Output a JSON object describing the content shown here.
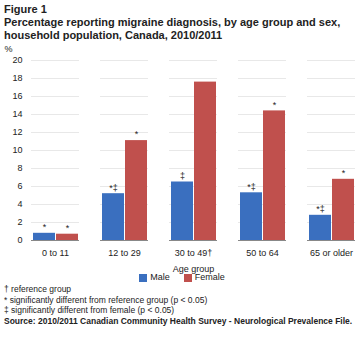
{
  "chart_data": {
    "type": "bar",
    "title": "Figure 1",
    "subtitle": "Percentage reporting migraine diagnosis, by age group and sex, household population, Canada, 2010/2011",
    "x_label": "Age group",
    "y_label": "%",
    "categories": [
      "0 to 11",
      "12 to 29",
      "30 to 49†",
      "50 to 64",
      "65 or older"
    ],
    "series": [
      {
        "name": "Male",
        "color": "#3a6fbf",
        "values": [
          0.8,
          5.2,
          6.5,
          5.3,
          2.8
        ],
        "annotations": [
          "*",
          "*‡",
          "‡",
          "*‡",
          "*‡"
        ]
      },
      {
        "name": "Female",
        "color": "#c0504d",
        "values": [
          0.7,
          11.1,
          17.6,
          14.4,
          6.8
        ],
        "annotations": [
          "*",
          "*",
          null,
          "*",
          "*"
        ]
      }
    ],
    "ylim": [
      0,
      20
    ],
    "yticks": [
      0,
      2,
      4,
      6,
      8,
      10,
      12,
      14,
      16,
      18,
      20
    ],
    "grid": true,
    "legend": "bottom",
    "footnotes": [
      "† reference group",
      "* significantly different from reference group (p < 0.05)",
      "‡ significantly different from female (p < 0.05)"
    ],
    "source": "Source: 2010/2011 Canadian Community Health Survey - Neurological Prevalence File."
  }
}
